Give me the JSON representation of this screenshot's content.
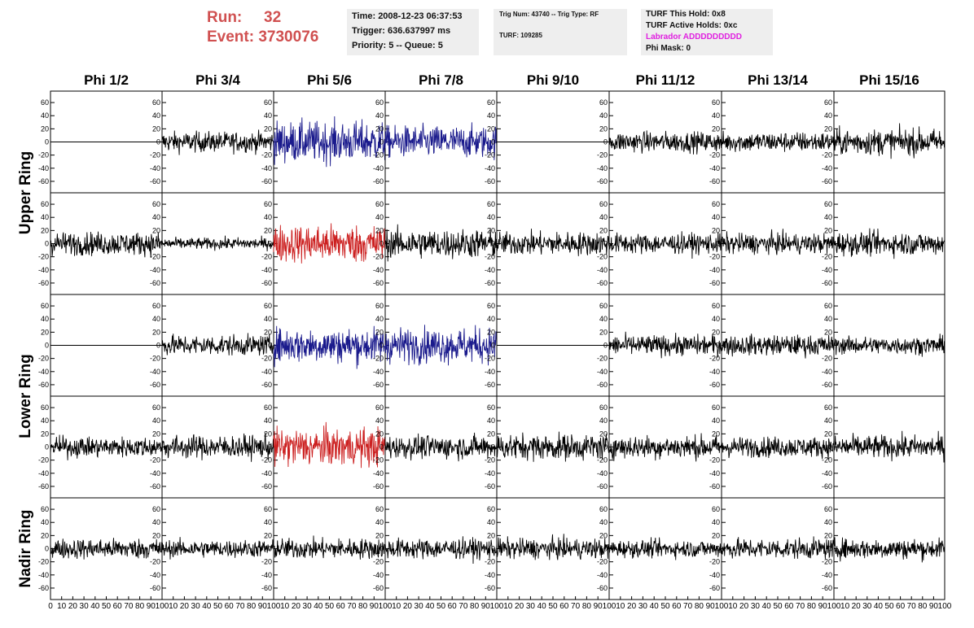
{
  "header": {
    "run_label": "Run:",
    "run_value": "32",
    "event_label": "Event:",
    "event_value": "3730076",
    "time": "Time: 2008-12-23 06:37:53",
    "trigger": "Trigger: 636.637997 ms",
    "priority": "Priority: 5 -- Queue: 5",
    "trig_num": "Trig Num: 43740 -- Trig Type: RF",
    "turf": "TURF: 109285",
    "turf_hold": "TURF This Hold: 0x8",
    "turf_active": "TURF Active Holds: 0xc",
    "labrador": "Labrador ADDDDDDDDD",
    "phi_mask": "Phi Mask: 0"
  },
  "colors": {
    "header_red": "#d05050",
    "labrador_magenta": "#e020e0",
    "trace_black": "#000000",
    "trace_blue": "#1a1a8c",
    "trace_red": "#cc2020"
  },
  "chart_data": {
    "type": "line",
    "columns": [
      "Phi 1/2",
      "Phi 3/4",
      "Phi 5/6",
      "Phi 7/8",
      "Phi 9/10",
      "Phi 11/12",
      "Phi 13/14",
      "Phi 15/16"
    ],
    "ring_labels": [
      "Upper Ring",
      "Lower Ring",
      "Nadir Ring"
    ],
    "ylim": [
      -70,
      70
    ],
    "y_ticks": [
      "60",
      "40",
      "20",
      "0",
      "-20",
      "-40",
      "-60"
    ],
    "xlim": [
      0,
      100
    ],
    "x_tick_labels": [
      "0",
      "10",
      "20",
      "30",
      "40",
      "50",
      "60",
      "70",
      "80",
      "90",
      "100"
    ],
    "grid": false,
    "rows": [
      [
        "flat",
        "black",
        "blue",
        "blue",
        "flat",
        "black",
        "black",
        "black"
      ],
      [
        "black",
        "black",
        "red",
        "black",
        "black",
        "black",
        "black",
        "black"
      ],
      [
        "flat",
        "black",
        "blue",
        "blue",
        "flat",
        "black",
        "black",
        "black"
      ],
      [
        "black",
        "black",
        "red",
        "black",
        "black",
        "black",
        "black",
        "black"
      ],
      [
        "black",
        "black",
        "black",
        "black",
        "black",
        "black",
        "black",
        "black"
      ]
    ],
    "amplitudes": [
      [
        0,
        14,
        28,
        22,
        0,
        14,
        14,
        18
      ],
      [
        16,
        8,
        26,
        20,
        16,
        14,
        14,
        16
      ],
      [
        0,
        14,
        24,
        24,
        0,
        14,
        14,
        12
      ],
      [
        14,
        16,
        26,
        16,
        18,
        16,
        14,
        16
      ],
      [
        14,
        12,
        14,
        14,
        14,
        12,
        14,
        14
      ]
    ]
  }
}
